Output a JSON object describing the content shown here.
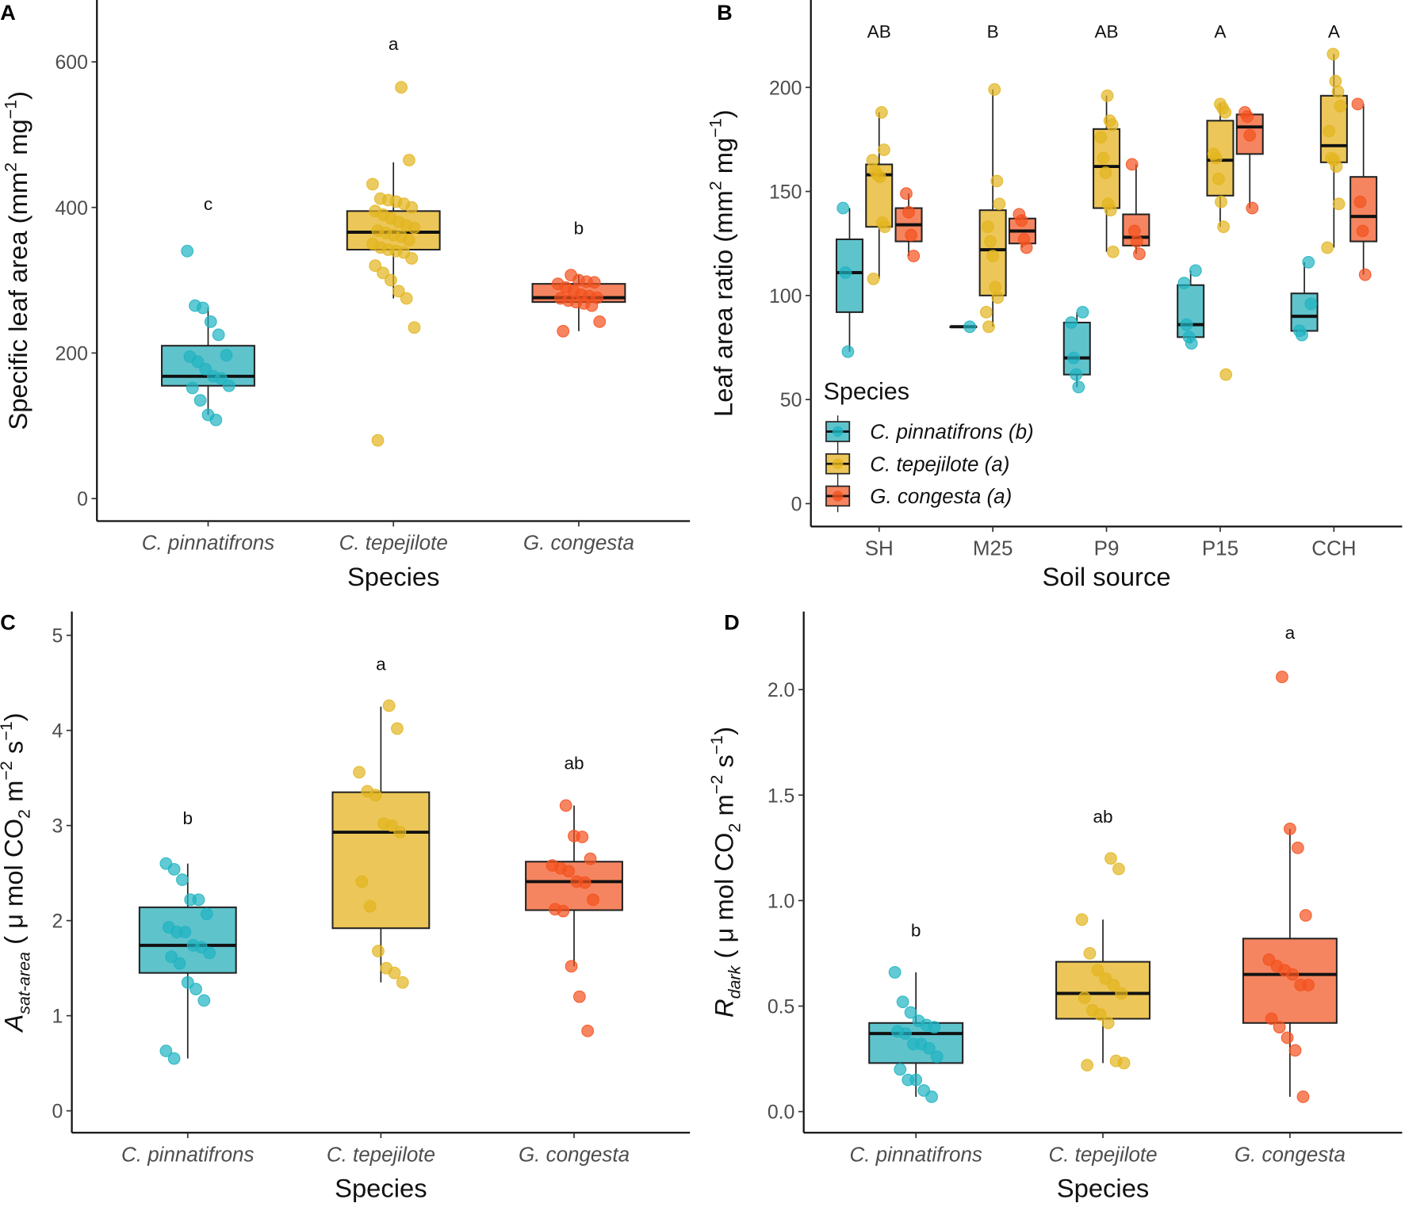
{
  "colors": {
    "C. pinnatifrons": {
      "point": "#1fb4c2",
      "fill": "#5fc3cc"
    },
    "C. tepejilote": {
      "point": "#e3b51e",
      "fill": "#ecc658"
    },
    "G. congesta": {
      "point": "#f4511e",
      "fill": "#f58560"
    }
  },
  "chart_data": [
    {
      "panel": "A",
      "type": "box",
      "xlabel": "Species",
      "ylabel": {
        "main": "Specific leaf area (mm",
        "sup1": "2",
        "mid": " mg",
        "sup2": "−1",
        "end": ")"
      },
      "categories": [
        "C. pinnatifrons",
        "C. tepejilote",
        "G. congesta"
      ],
      "categories_italic": true,
      "ylim": [
        -31,
        685
      ],
      "yticks": [
        0,
        200,
        400,
        600
      ],
      "ytick_labels": [
        "0",
        "200",
        "400",
        "600"
      ],
      "groups": [
        {
          "category": "C. pinnatifrons",
          "species": "C. pinnatifrons",
          "stats": [
            115,
            155,
            168,
            210,
            262
          ],
          "points": [
            340,
            265,
            262,
            243,
            225,
            197,
            195,
            188,
            178,
            168,
            165,
            155,
            152,
            135,
            115,
            108
          ]
        },
        {
          "category": "C. tepejilote",
          "species": "C. tepejilote",
          "stats": [
            275,
            342,
            366,
            395,
            462
          ],
          "points": [
            565,
            465,
            432,
            412,
            410,
            408,
            405,
            400,
            395,
            390,
            385,
            380,
            375,
            372,
            368,
            365,
            362,
            360,
            355,
            350,
            345,
            342,
            340,
            338,
            330,
            320,
            310,
            300,
            285,
            275,
            235,
            80
          ]
        },
        {
          "category": "G. congesta",
          "species": "G. congesta",
          "stats": [
            230,
            270,
            276,
            295,
            307
          ],
          "points": [
            307,
            300,
            298,
            297,
            295,
            290,
            285,
            280,
            278,
            276,
            275,
            272,
            270,
            268,
            265,
            243,
            230
          ]
        }
      ],
      "letters": [
        {
          "category": "C. pinnatifrons",
          "label": "c",
          "y": 405
        },
        {
          "category": "C. tepejilote",
          "label": "a",
          "y": 625
        },
        {
          "category": "G. congesta",
          "label": "b",
          "y": 372
        }
      ]
    },
    {
      "panel": "B",
      "type": "box",
      "xlabel": "Soil source",
      "ylabel": {
        "main": "Leaf area ratio (mm",
        "sup1": "2",
        "mid": " mg",
        "sup2": "−1",
        "end": ")"
      },
      "categories": [
        "SH",
        "M25",
        "P9",
        "P15",
        "CCH"
      ],
      "categories_italic": false,
      "ylim": [
        -11,
        242
      ],
      "yticks": [
        0,
        50,
        100,
        150,
        200
      ],
      "ytick_labels": [
        "0",
        "50",
        "100",
        "150",
        "200"
      ],
      "legend": {
        "title": "Species",
        "position": "bottom-left",
        "entries": [
          {
            "species": "C. pinnatifrons",
            "label": "C. pinnatifrons (b)"
          },
          {
            "species": "C. tepejilote",
            "label": "C. tepejilote (a)"
          },
          {
            "species": "G. congesta",
            "label": "G. congesta (a)"
          }
        ]
      },
      "groups": [
        {
          "category": "SH",
          "species": "C. pinnatifrons",
          "stats": [
            73,
            92,
            111,
            127,
            142
          ],
          "points": [
            142,
            111,
            73
          ]
        },
        {
          "category": "SH",
          "species": "C. tepejilote",
          "stats": [
            108,
            133,
            158,
            163,
            188
          ],
          "points": [
            188,
            170,
            165,
            160,
            158,
            157,
            135,
            133,
            108
          ]
        },
        {
          "category": "SH",
          "species": "G. congesta",
          "stats": [
            119,
            126,
            134,
            142,
            149
          ],
          "points": [
            149,
            140,
            129,
            119
          ]
        },
        {
          "category": "M25",
          "species": "C. pinnatifrons",
          "stats": [
            85,
            85,
            85,
            85,
            85
          ],
          "points": [
            85
          ]
        },
        {
          "category": "M25",
          "species": "C. tepejilote",
          "stats": [
            85,
            100,
            122,
            141,
            199
          ],
          "points": [
            199,
            155,
            144,
            133,
            126,
            119,
            104,
            99,
            92,
            85
          ]
        },
        {
          "category": "M25",
          "species": "G. congesta",
          "stats": [
            123,
            125,
            131,
            137,
            139
          ],
          "points": [
            139,
            136,
            127,
            123
          ]
        },
        {
          "category": "P9",
          "species": "C. pinnatifrons",
          "stats": [
            56,
            62,
            70,
            87,
            92
          ],
          "points": [
            92,
            87,
            70,
            62,
            56
          ]
        },
        {
          "category": "P9",
          "species": "C. tepejilote",
          "stats": [
            121,
            142,
            162,
            180,
            196
          ],
          "points": [
            196,
            184,
            182,
            176,
            166,
            159,
            144,
            141,
            121
          ]
        },
        {
          "category": "P9",
          "species": "G. congesta",
          "stats": [
            120,
            124,
            128,
            139,
            163
          ],
          "points": [
            163,
            131,
            126,
            120
          ]
        },
        {
          "category": "P15",
          "species": "C. pinnatifrons",
          "stats": [
            77,
            80,
            86,
            105,
            112
          ],
          "points": [
            112,
            106,
            86,
            80,
            77
          ]
        },
        {
          "category": "P15",
          "species": "C. tepejilote",
          "stats": [
            133,
            148,
            165,
            184,
            192
          ],
          "points": [
            192,
            190,
            188,
            168,
            166,
            156,
            145,
            133,
            62
          ]
        },
        {
          "category": "P15",
          "species": "G. congesta",
          "stats": [
            142,
            168,
            181,
            187,
            188
          ],
          "points": [
            188,
            186,
            177,
            142
          ]
        },
        {
          "category": "CCH",
          "species": "C. pinnatifrons",
          "stats": [
            81,
            83,
            90,
            101,
            116
          ],
          "points": [
            116,
            96,
            83,
            81
          ]
        },
        {
          "category": "CCH",
          "species": "C. tepejilote",
          "stats": [
            123,
            164,
            172,
            196,
            216
          ],
          "points": [
            216,
            203,
            198,
            191,
            179,
            166,
            165,
            162,
            144,
            123
          ]
        },
        {
          "category": "CCH",
          "species": "G. congesta",
          "stats": [
            110,
            126,
            138,
            157,
            192
          ],
          "points": [
            192,
            145,
            131,
            110
          ]
        }
      ],
      "letters": [
        {
          "category": "SH",
          "label": "AB",
          "y": 227
        },
        {
          "category": "M25",
          "label": "B",
          "y": 227
        },
        {
          "category": "P9",
          "label": "AB",
          "y": 227
        },
        {
          "category": "P15",
          "label": "A",
          "y": 227
        },
        {
          "category": "CCH",
          "label": "A",
          "y": 227
        }
      ]
    },
    {
      "panel": "C",
      "type": "box",
      "xlabel": "Species",
      "ylabel": {
        "main": "A",
        "sub": "sat-area",
        "rest": " ( μ mol CO",
        "sub2": "2",
        "mid": " m",
        "sup1": "−2",
        "mid2": " s",
        "sup2": "−1",
        "end": ")"
      },
      "categories": [
        "C. pinnatifrons",
        "C. tepejilote",
        "G. congesta"
      ],
      "categories_italic": true,
      "ylim": [
        -0.23,
        5.25
      ],
      "yticks": [
        0,
        1,
        2,
        3,
        4,
        5
      ],
      "ytick_labels": [
        "0",
        "1",
        "2",
        "3",
        "4",
        "5"
      ],
      "groups": [
        {
          "category": "C. pinnatifrons",
          "species": "C. pinnatifrons",
          "stats": [
            0.55,
            1.45,
            1.74,
            2.14,
            2.6
          ],
          "points": [
            2.6,
            2.54,
            2.43,
            2.22,
            2.22,
            2.07,
            1.93,
            1.88,
            1.88,
            1.74,
            1.72,
            1.66,
            1.62,
            1.55,
            1.35,
            1.28,
            1.16,
            0.63,
            0.55
          ]
        },
        {
          "category": "C. tepejilote",
          "species": "C. tepejilote",
          "stats": [
            1.35,
            1.92,
            2.93,
            3.35,
            4.25
          ],
          "points": [
            4.26,
            4.02,
            3.56,
            3.36,
            3.32,
            3.02,
            3.0,
            2.93,
            2.41,
            2.15,
            1.68,
            1.5,
            1.45,
            1.35
          ]
        },
        {
          "category": "G. congesta",
          "species": "G. congesta",
          "stats": [
            1.52,
            2.11,
            2.41,
            2.62,
            3.21
          ],
          "points": [
            3.21,
            2.89,
            2.88,
            2.65,
            2.58,
            2.55,
            2.52,
            2.41,
            2.4,
            2.22,
            2.12,
            2.1,
            1.52,
            1.2,
            0.84
          ]
        }
      ],
      "letters": [
        {
          "category": "C. pinnatifrons",
          "label": "b",
          "y": 3.08
        },
        {
          "category": "C. tepejilote",
          "label": "a",
          "y": 4.7
        },
        {
          "category": "G. congesta",
          "label": "ab",
          "y": 3.66
        }
      ]
    },
    {
      "panel": "D",
      "type": "box",
      "xlabel": "Species",
      "ylabel": {
        "main": "R",
        "sub": "dark",
        "rest": " ( μ mol CO",
        "sub2": "2",
        "mid": " m",
        "sup1": "−2",
        "mid2": " s",
        "sup2": "−1",
        "end": ")"
      },
      "categories": [
        "C. pinnatifrons",
        "C. tepejilote",
        "G. congesta"
      ],
      "categories_italic": true,
      "ylim": [
        -0.1,
        2.37
      ],
      "yticks": [
        0,
        0.5,
        1,
        1.5,
        2
      ],
      "ytick_labels": [
        "0.0",
        "0.5",
        "1.0",
        "1.5",
        "2.0"
      ],
      "groups": [
        {
          "category": "C. pinnatifrons",
          "species": "C. pinnatifrons",
          "stats": [
            0.07,
            0.23,
            0.37,
            0.42,
            0.66
          ],
          "points": [
            0.66,
            0.52,
            0.47,
            0.43,
            0.41,
            0.4,
            0.38,
            0.37,
            0.32,
            0.32,
            0.3,
            0.26,
            0.2,
            0.15,
            0.15,
            0.1,
            0.07
          ]
        },
        {
          "category": "C. tepejilote",
          "species": "C. tepejilote",
          "stats": [
            0.23,
            0.44,
            0.56,
            0.71,
            0.91
          ],
          "points": [
            1.2,
            1.15,
            0.91,
            0.75,
            0.67,
            0.63,
            0.6,
            0.56,
            0.54,
            0.48,
            0.46,
            0.42,
            0.24,
            0.23,
            0.22
          ]
        },
        {
          "category": "G. congesta",
          "species": "G. congesta",
          "stats": [
            0.07,
            0.42,
            0.65,
            0.82,
            1.34
          ],
          "points": [
            2.06,
            1.34,
            1.25,
            0.93,
            0.72,
            0.69,
            0.67,
            0.65,
            0.6,
            0.6,
            0.44,
            0.4,
            0.35,
            0.29,
            0.07
          ]
        }
      ],
      "letters": [
        {
          "category": "C. pinnatifrons",
          "label": "b",
          "y": 0.86
        },
        {
          "category": "C. tepejilote",
          "label": "ab",
          "y": 1.4
        },
        {
          "category": "G. congesta",
          "label": "a",
          "y": 2.27
        }
      ]
    }
  ]
}
